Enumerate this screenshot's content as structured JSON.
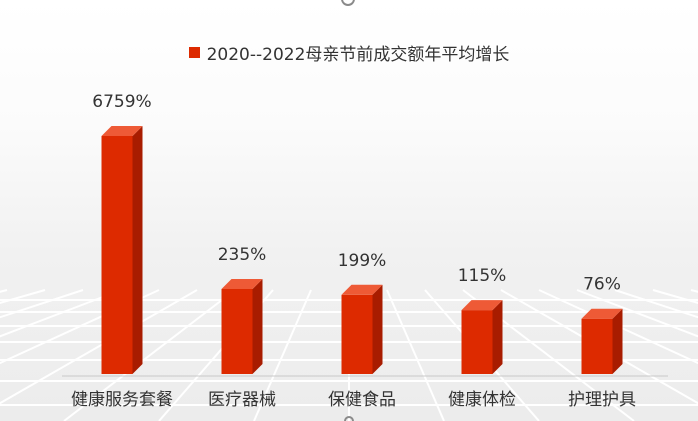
{
  "chart_data": {
    "type": "bar",
    "title": "",
    "legend": {
      "label": "2020--2022母亲节前成交额年平均增长",
      "position": "top-center"
    },
    "categories": [
      "健康服务套餐",
      "医疗器械",
      "保健食品",
      "健康体检",
      "护理护具"
    ],
    "series": [
      {
        "name": "2020--2022母亲节前成交额年平均增长",
        "values": [
          6759,
          235,
          199,
          115,
          76
        ]
      }
    ],
    "value_labels": [
      "6759%",
      "235%",
      "199%",
      "115%",
      "76%"
    ],
    "unit": "%",
    "xlabel": "",
    "ylabel": "",
    "y_axis_visible": false,
    "grid": false,
    "bar_style": "3d",
    "colors": {
      "bar_front": "#dd2a00",
      "bar_side": "#a81c00",
      "bar_top": "#ee5a36"
    }
  }
}
